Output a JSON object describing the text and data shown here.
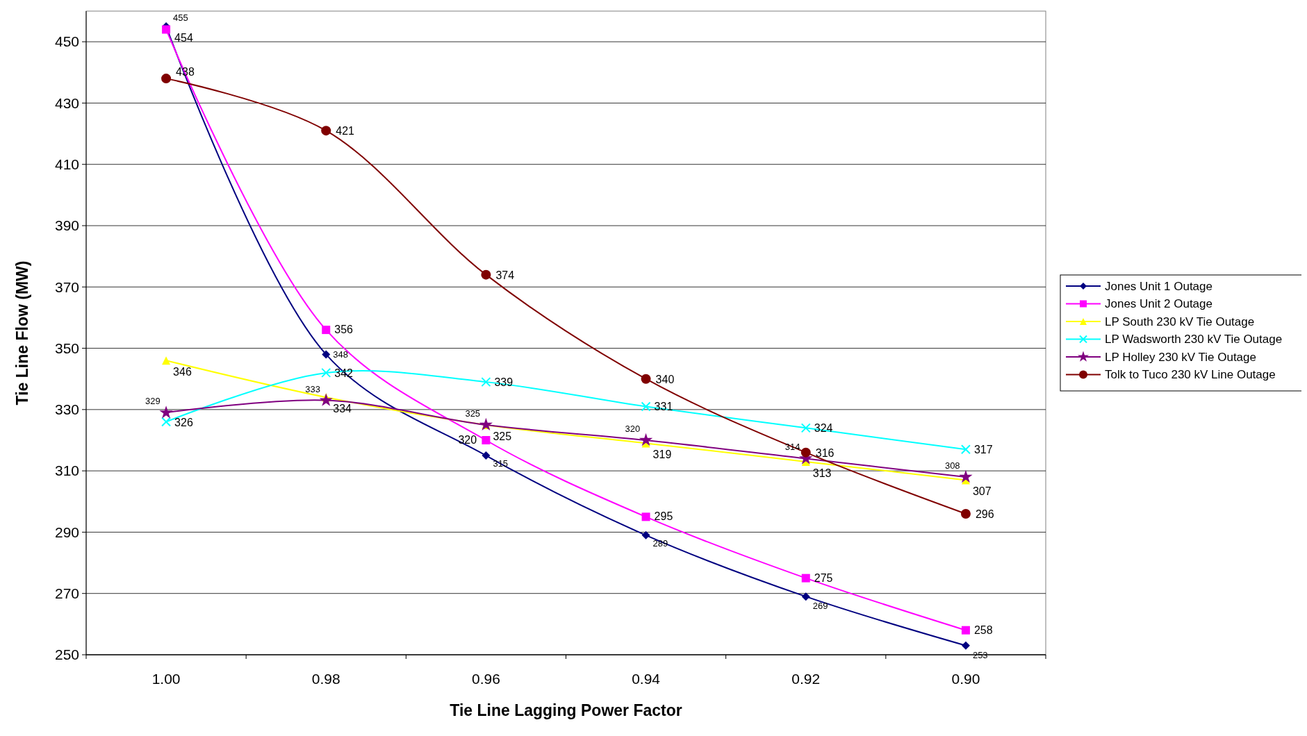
{
  "chart_data": {
    "type": "line",
    "xlabel": "Tie Line Lagging Power Factor",
    "ylabel": "Tie Line Flow (MW)",
    "categories": [
      "1.00",
      "0.98",
      "0.96",
      "0.94",
      "0.92",
      "0.90"
    ],
    "ylim": [
      250,
      460
    ],
    "yticks": [
      250,
      270,
      290,
      310,
      330,
      350,
      370,
      390,
      410,
      430,
      450
    ],
    "grid": "y",
    "legend": "right",
    "data_labels": true,
    "series": [
      {
        "name": "Jones Unit 1 Outage",
        "color": "#000080",
        "marker": "diamond",
        "values": [
          455,
          348,
          315,
          289,
          269,
          253
        ]
      },
      {
        "name": "Jones Unit 2 Outage",
        "color": "#ff00ff",
        "marker": "square",
        "values": [
          454,
          356,
          320,
          295,
          275,
          258
        ]
      },
      {
        "name": "LP South 230 kV Tie Outage",
        "color": "#ffff00",
        "marker": "triangle",
        "values": [
          346,
          334,
          325,
          319,
          313,
          307
        ]
      },
      {
        "name": "LP Wadsworth 230 kV Tie Outage",
        "color": "#00ffff",
        "marker": "cross",
        "values": [
          326,
          342,
          339,
          331,
          324,
          317
        ]
      },
      {
        "name": "LP Holley 230 kV Tie Outage",
        "color": "#800080",
        "marker": "star",
        "values": [
          329,
          333,
          325,
          320,
          314,
          308
        ]
      },
      {
        "name": "Tolk to Tuco 230 kV Line Outage",
        "color": "#800000",
        "marker": "circle",
        "values": [
          438,
          421,
          374,
          340,
          316,
          296
        ]
      }
    ]
  }
}
